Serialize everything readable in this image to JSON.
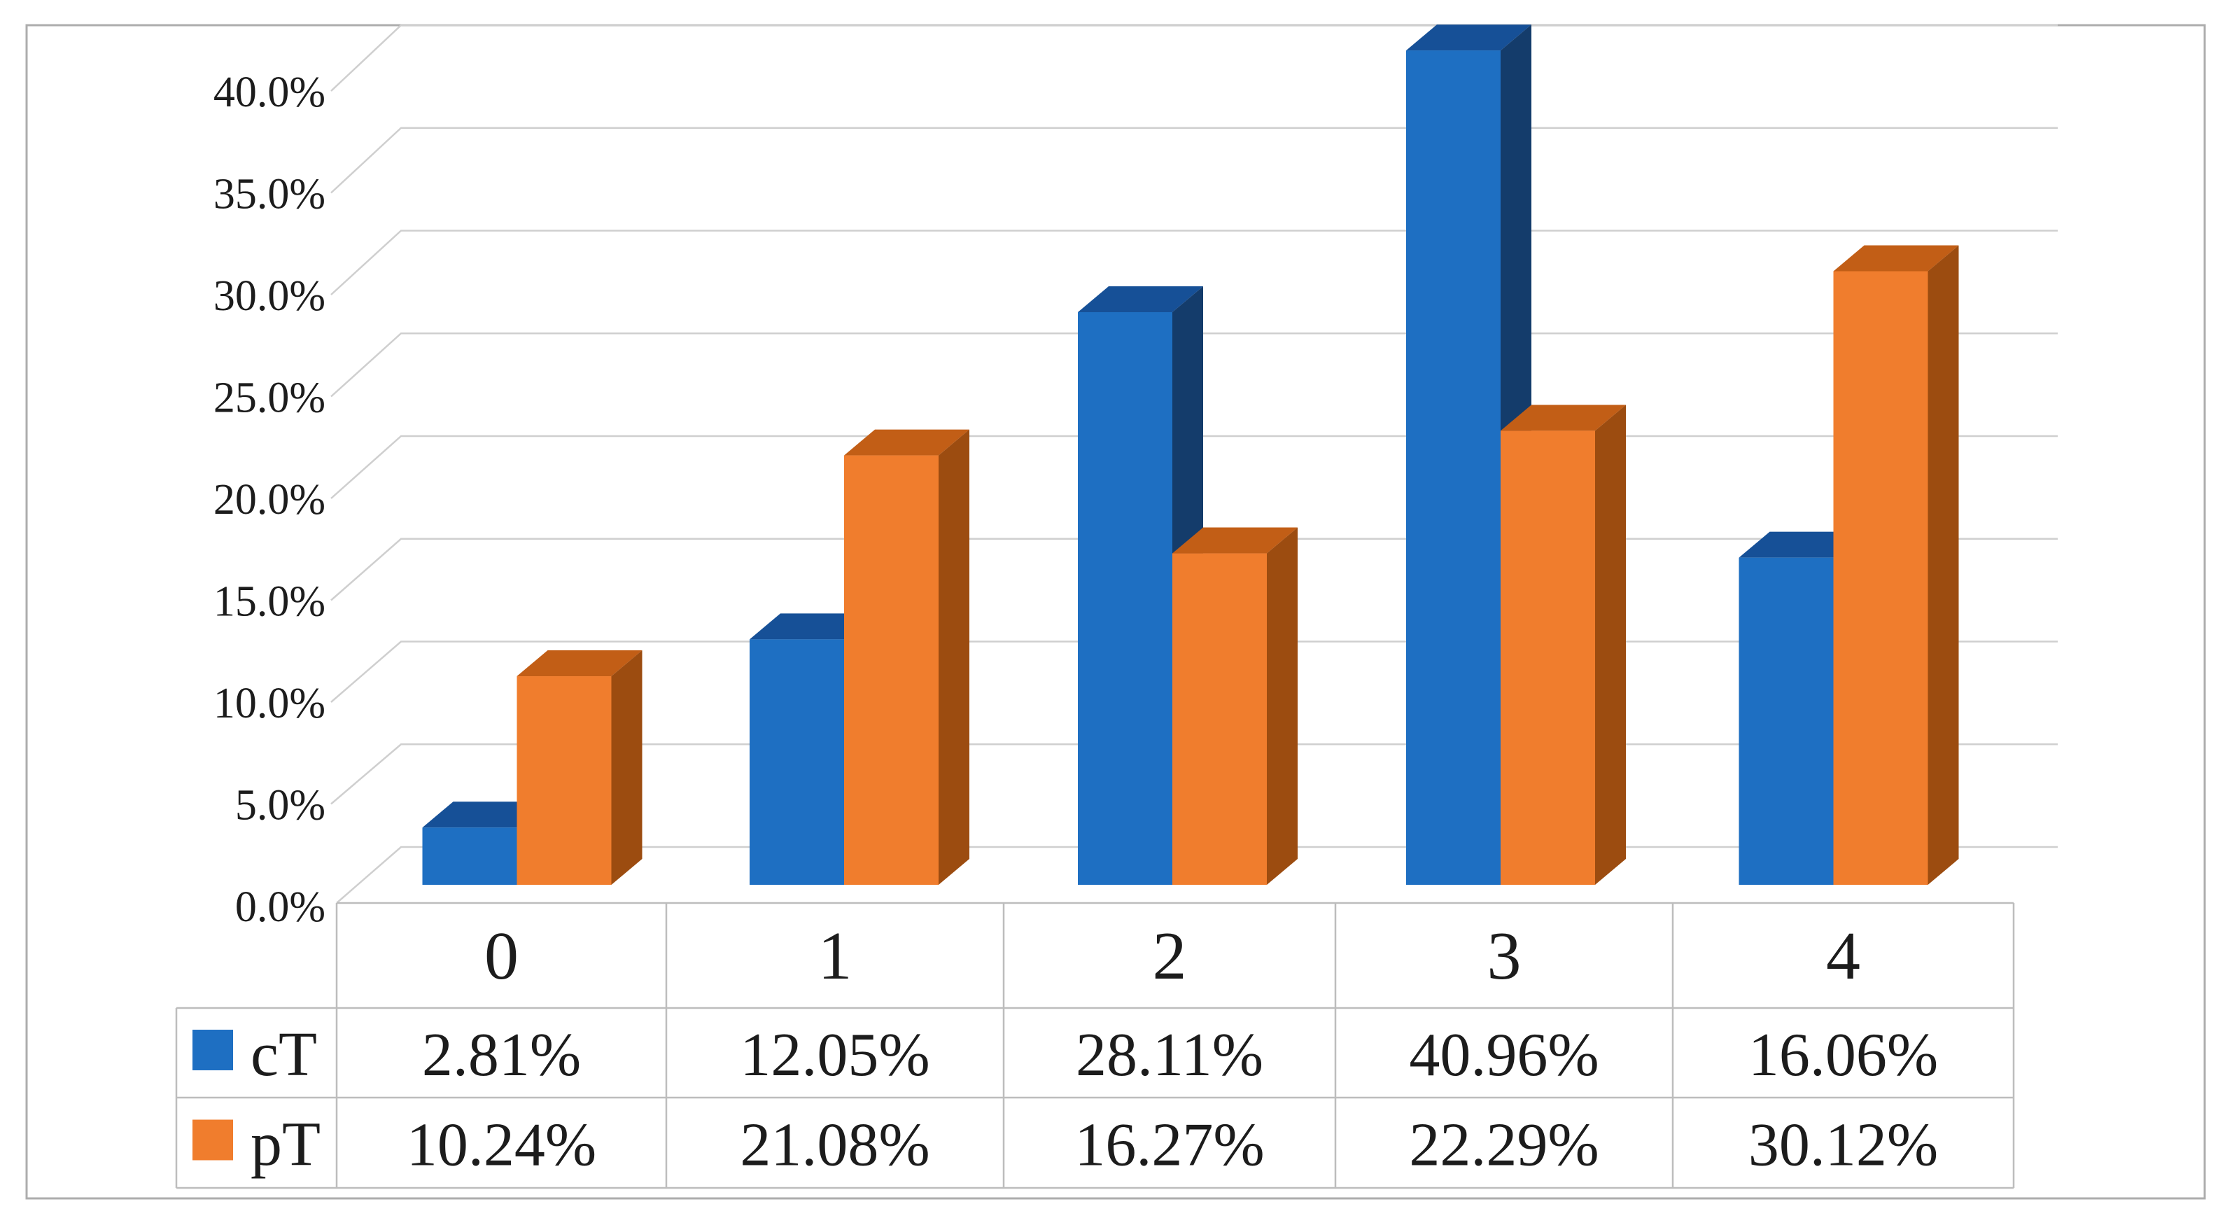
{
  "figure": {
    "description": "3D clustered column chart with data table",
    "background": "#ffffff",
    "border_color": "#adadad"
  },
  "chart_data": {
    "type": "bar",
    "variant": "3d-clustered-column",
    "title": "",
    "xlabel": "",
    "ylabel": "",
    "categories": [
      "0",
      "1",
      "2",
      "3",
      "4"
    ],
    "series": [
      {
        "name": "cT",
        "color": "#1E6FC2",
        "color_side": "#143C6B",
        "color_top": "#165097",
        "values": [
          2.81,
          12.05,
          28.11,
          40.96,
          16.06
        ],
        "value_labels": [
          "2.81%",
          "12.05%",
          "28.11%",
          "40.96%",
          "16.06%"
        ]
      },
      {
        "name": "pT",
        "color": "#F07D2D",
        "color_side": "#9C4C10",
        "color_top": "#C25E16",
        "values": [
          10.24,
          21.08,
          16.27,
          22.29,
          30.12
        ],
        "value_labels": [
          "10.24%",
          "21.08%",
          "16.27%",
          "22.29%",
          "30.12%"
        ]
      }
    ],
    "y_axis": {
      "min": 0,
      "max": 40,
      "step": 5,
      "tick_labels": [
        "0.0%",
        "5.0%",
        "10.0%",
        "15.0%",
        "20.0%",
        "25.0%",
        "30.0%",
        "35.0%",
        "40.0%"
      ]
    },
    "gridlines": true,
    "grid_color": "#cfcfcf",
    "table_border_color": "#bdbdbd",
    "text_color": "#1c1c1c",
    "legend_position": "data-table-left-column",
    "data_table": true
  }
}
